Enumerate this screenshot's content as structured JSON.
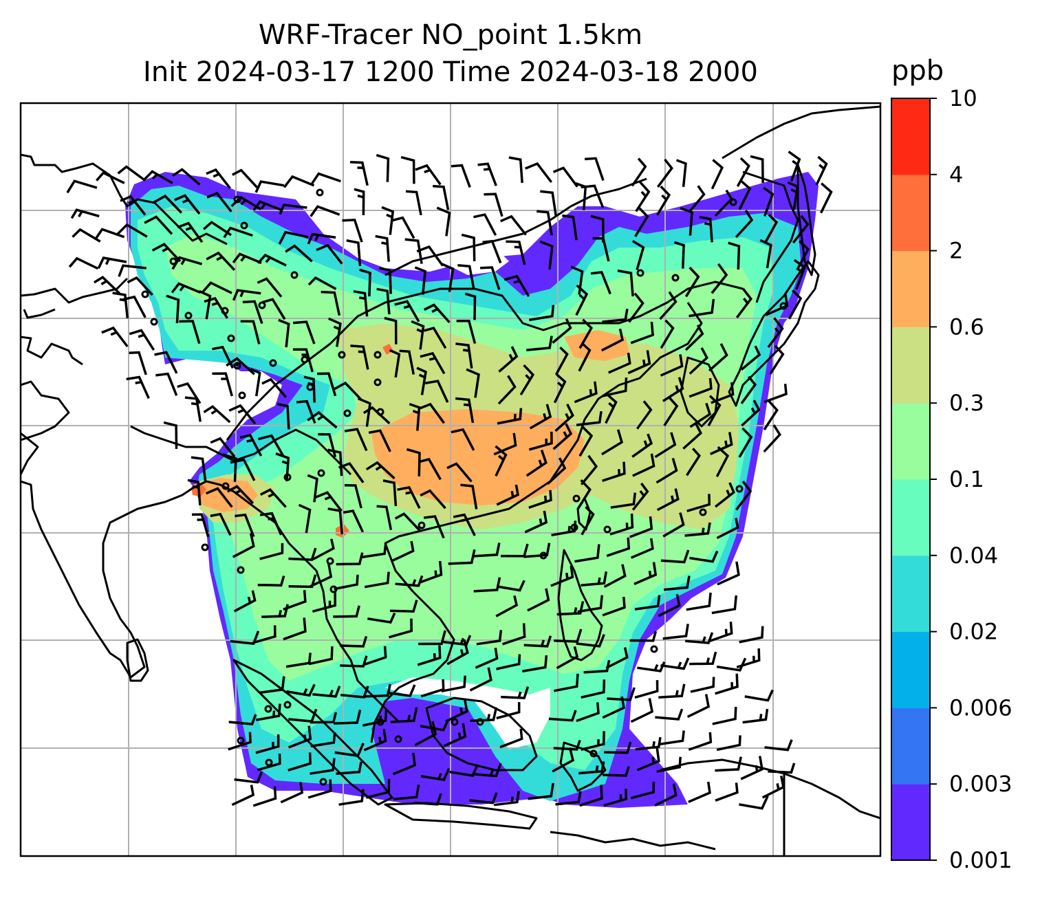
{
  "figure": {
    "title_line1": "WRF-Tracer NO_point 1.5km",
    "title_line2": "Init 2024-03-17 1200 Time 2024-03-18 2000"
  },
  "colorbar": {
    "label": "ppb",
    "ticks": [
      "0.001",
      "0.003",
      "0.006",
      "0.02",
      "0.04",
      "0.1",
      "0.3",
      "0.6",
      "2",
      "4",
      "10"
    ],
    "colors": [
      "#6229ff",
      "#3475f4",
      "#04b0e9",
      "#34dcd9",
      "#67fdbf",
      "#99fd9e",
      "#cbe083",
      "#ffae5e",
      "#ff6f3b",
      "#ff2a14"
    ]
  },
  "map": {
    "gridlines": true,
    "coastline_color": "#000000",
    "grid_color": "#b0b0b0",
    "wind_barb_color": "#000000"
  }
}
